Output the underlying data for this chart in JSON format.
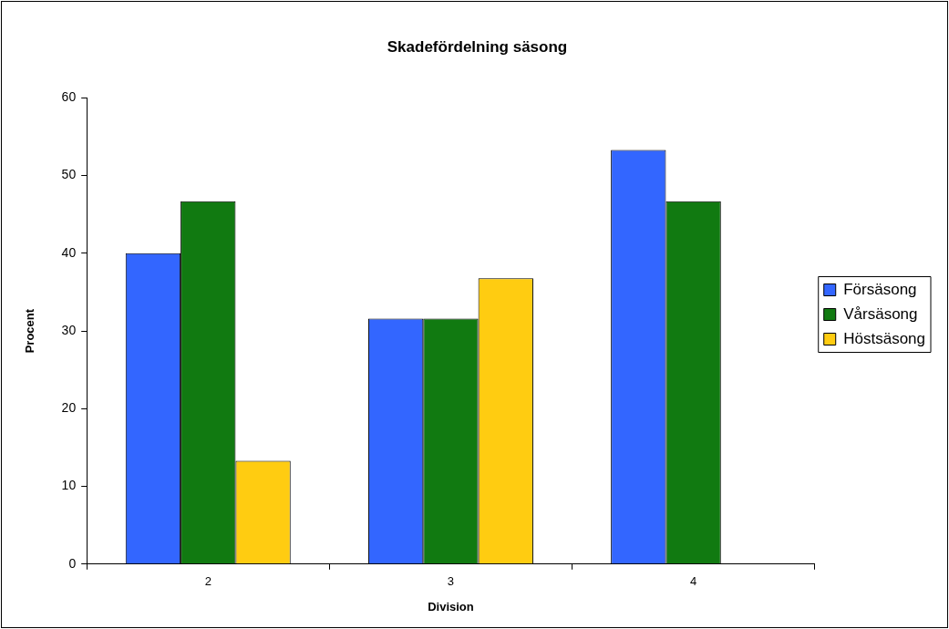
{
  "chart_data": {
    "type": "bar",
    "title": "Skadefördelning säsong",
    "xlabel": "Division",
    "ylabel": "Procent",
    "categories": [
      "2",
      "3",
      "4"
    ],
    "series": [
      {
        "name": "Försäsong",
        "color": "#3366ff",
        "values": [
          40,
          31.6,
          53.3
        ]
      },
      {
        "name": "Vårsäsong",
        "color": "#117a11",
        "values": [
          46.7,
          31.6,
          46.7
        ]
      },
      {
        "name": "Höstsäsong",
        "color": "#ffcc11",
        "values": [
          13.3,
          36.8,
          null
        ]
      }
    ],
    "ylim": [
      0,
      60
    ],
    "yticks": [
      0,
      10,
      20,
      30,
      40,
      50,
      60
    ],
    "grid": false,
    "legend": "right"
  }
}
